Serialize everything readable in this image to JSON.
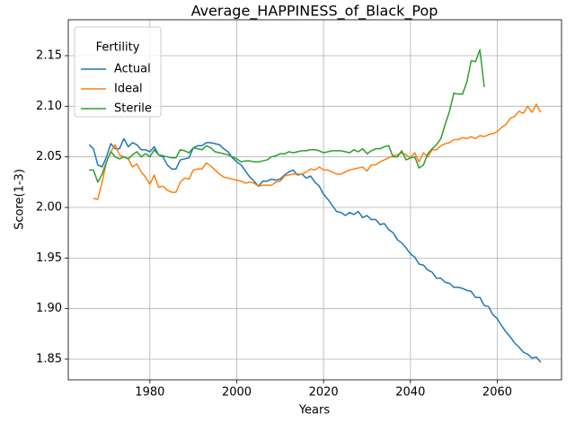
{
  "chart_data": {
    "type": "line",
    "title": "Average_HAPPINESS_of_Black_Pop",
    "xlabel": "Years",
    "ylabel": "Score(1-3)",
    "legend_title": "Fertility",
    "legend": "upper left",
    "grid": true,
    "x": [
      1966,
      1967,
      1968,
      1969,
      1970,
      1971,
      1972,
      1973,
      1974,
      1975,
      1976,
      1977,
      1978,
      1979,
      1980,
      1981,
      1982,
      1983,
      1984,
      1985,
      1986,
      1987,
      1988,
      1989,
      1990,
      1991,
      1992,
      1993,
      1994,
      1995,
      1996,
      1997,
      1998,
      1999,
      2000,
      2001,
      2002,
      2003,
      2004,
      2005,
      2006,
      2007,
      2008,
      2009,
      2010,
      2011,
      2012,
      2013,
      2014,
      2015,
      2016,
      2017,
      2018,
      2019,
      2020,
      2021,
      2022,
      2023,
      2024,
      2025,
      2026,
      2027,
      2028,
      2029,
      2030,
      2031,
      2032,
      2033,
      2034,
      2035,
      2036,
      2037,
      2038,
      2039,
      2040,
      2041,
      2042,
      2043,
      2044,
      2045,
      2046,
      2047,
      2048,
      2049,
      2050,
      2051,
      2052,
      2053,
      2054,
      2055,
      2056,
      2057,
      2058,
      2059,
      2060,
      2061,
      2062,
      2063,
      2064,
      2065,
      2066,
      2067,
      2068,
      2069,
      2070
    ],
    "series": [
      {
        "name": "Actual",
        "color": "#1f77b4",
        "values": [
          2.062,
          2.058,
          2.042,
          2.04,
          2.05,
          2.063,
          2.058,
          2.058,
          2.068,
          2.06,
          2.064,
          2.062,
          2.057,
          2.057,
          2.055,
          2.06,
          2.052,
          2.05,
          2.042,
          2.038,
          2.038,
          2.047,
          2.048,
          2.049,
          2.059,
          2.061,
          2.061,
          2.064,
          2.064,
          2.063,
          2.062,
          2.058,
          2.055,
          2.049,
          2.045,
          2.042,
          2.036,
          2.03,
          2.026,
          2.021,
          2.026,
          2.026,
          2.028,
          2.027,
          2.028,
          2.032,
          2.035,
          2.037,
          2.032,
          2.033,
          2.029,
          2.031,
          2.025,
          2.021,
          2.013,
          2.008,
          2.002,
          1.996,
          1.995,
          1.992,
          1.995,
          1.993,
          1.996,
          1.99,
          1.992,
          1.988,
          1.988,
          1.983,
          1.984,
          1.978,
          1.975,
          1.968,
          1.965,
          1.96,
          1.954,
          1.951,
          1.944,
          1.943,
          1.938,
          1.936,
          1.93,
          1.93,
          1.926,
          1.925,
          1.921,
          1.921,
          1.92,
          1.918,
          1.917,
          1.911,
          1.911,
          1.903,
          1.902,
          1.894,
          1.89,
          1.883,
          1.877,
          1.872,
          1.866,
          1.862,
          1.857,
          1.855,
          1.851,
          1.852,
          1.847
        ]
      },
      {
        "name": "Ideal",
        "color": "#ff7f0e",
        "values": [
          null,
          2.009,
          2.008,
          2.025,
          2.045,
          2.055,
          2.062,
          2.052,
          2.05,
          2.048,
          2.04,
          2.043,
          2.035,
          2.03,
          2.023,
          2.032,
          2.02,
          2.021,
          2.017,
          2.015,
          2.015,
          2.025,
          2.029,
          2.028,
          2.037,
          2.038,
          2.038,
          2.044,
          2.041,
          2.037,
          2.033,
          2.03,
          2.029,
          2.028,
          2.027,
          2.026,
          2.024,
          2.025,
          2.024,
          2.021,
          2.022,
          2.022,
          2.022,
          2.025,
          2.026,
          2.031,
          2.032,
          2.033,
          2.033,
          2.033,
          2.035,
          2.038,
          2.037,
          2.04,
          2.037,
          2.037,
          2.035,
          2.033,
          2.033,
          2.035,
          2.037,
          2.038,
          2.039,
          2.04,
          2.036,
          2.042,
          2.042,
          2.045,
          2.047,
          2.049,
          2.051,
          2.052,
          2.054,
          2.052,
          2.049,
          2.054,
          2.045,
          2.054,
          2.05,
          2.057,
          2.057,
          2.061,
          2.063,
          2.064,
          2.067,
          2.067,
          2.069,
          2.068,
          2.07,
          2.068,
          2.071,
          2.07,
          2.072,
          2.073,
          2.075,
          2.079,
          2.082,
          2.088,
          2.09,
          2.095,
          2.093,
          2.1,
          2.094,
          2.102,
          2.094
        ]
      },
      {
        "name": "Sterile",
        "color": "#2ca02c",
        "values": [
          2.037,
          2.037,
          2.025,
          2.033,
          2.045,
          2.055,
          2.05,
          2.048,
          2.05,
          2.048,
          2.052,
          2.055,
          2.05,
          2.053,
          2.05,
          2.057,
          2.052,
          2.051,
          2.05,
          2.049,
          2.049,
          2.057,
          2.056,
          2.054,
          2.059,
          2.058,
          2.057,
          2.061,
          2.059,
          2.055,
          2.054,
          2.053,
          2.052,
          2.05,
          2.048,
          2.045,
          2.046,
          2.046,
          2.045,
          2.045,
          2.046,
          2.047,
          2.05,
          2.051,
          2.053,
          2.053,
          2.055,
          2.054,
          2.055,
          2.056,
          2.056,
          2.057,
          2.057,
          2.056,
          2.054,
          2.055,
          2.056,
          2.056,
          2.056,
          2.055,
          2.054,
          2.057,
          2.055,
          2.058,
          2.053,
          2.056,
          2.058,
          2.058,
          2.06,
          2.061,
          2.05,
          2.05,
          2.056,
          2.047,
          2.049,
          2.05,
          2.039,
          2.042,
          2.053,
          2.058,
          2.062,
          2.068,
          2.082,
          2.095,
          2.113,
          2.112,
          2.112,
          2.124,
          2.145,
          2.144,
          2.156,
          2.119,
          null,
          null,
          null,
          null,
          null,
          null,
          null,
          null,
          null,
          null,
          null,
          null,
          null
        ]
      }
    ],
    "xlim": [
      1961.2,
      2074.8
    ],
    "xticks": [
      1980,
      2000,
      2020,
      2040,
      2060
    ],
    "ylim": [
      1.8296,
      2.1855
    ],
    "yticks": [
      1.85,
      {
        "value": 1.9,
        "label": "1.90"
      },
      1.95,
      {
        "value": 2.0,
        "label": "2.00"
      },
      2.05,
      {
        "value": 2.1,
        "label": "2.10"
      },
      2.15
    ]
  }
}
